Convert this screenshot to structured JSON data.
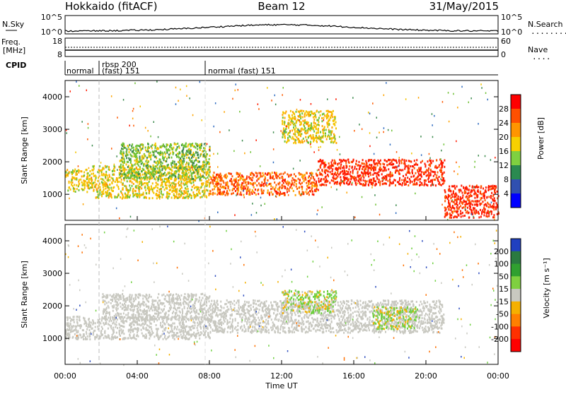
{
  "header": {
    "title": "Hokkaido (fitACF)",
    "beam": "Beam 12",
    "date": "31/May/2015"
  },
  "nsky_panel": {
    "left_label": "N.Sky",
    "left_ticks": [
      "10^5",
      "10^0"
    ],
    "right_label": "N.Search",
    "right_ticks": [
      "10^5",
      "10^0"
    ],
    "right_line_marker": "........"
  },
  "freq_panel": {
    "left_label_line1": "Freq.",
    "left_label_line2": "[MHz]",
    "left_ticks": [
      "18",
      "8"
    ],
    "right_label": "Nave",
    "right_ticks": [
      "60",
      "0"
    ],
    "right_line_marker": "...."
  },
  "cpid_panel": {
    "label": "CPID",
    "segments": [
      {
        "text_line1": "normal",
        "text_line2": ""
      },
      {
        "text_line1": "rbsp 200",
        "text_line2": "(fast) 151"
      },
      {
        "text_line1": "normal (fast)  151",
        "text_line2": ""
      }
    ]
  },
  "chart_data": [
    {
      "type": "heatmap",
      "name": "power",
      "ylabel": "Slant Range [km]",
      "y_ticks": [
        "1000",
        "2000",
        "3000",
        "4000"
      ],
      "ylim": [
        200,
        4500
      ],
      "colorbar_label": "Power [dB]",
      "colorbar_ticks": [
        "28",
        "24",
        "20",
        "16",
        "12",
        "8",
        "4"
      ],
      "colorbar_colors": [
        "#ff0000",
        "#ff5000",
        "#ff9500",
        "#f7d000",
        "#7fd040",
        "#2a8a50",
        "#3050b0",
        "#0000ff"
      ],
      "scatter_colors": [
        "#2f6cc0",
        "#3c8a4c",
        "#6fc236",
        "#f4c400",
        "#ffa400",
        "#ff5a00",
        "#ff1a00"
      ],
      "bands": [
        {
          "x": [
            0,
            1.5
          ],
          "y": [
            1100,
            1800
          ],
          "level": 3
        },
        {
          "x": [
            1.5,
            8
          ],
          "y": [
            900,
            1900
          ],
          "level": 3
        },
        {
          "x": [
            3,
            8
          ],
          "y": [
            1500,
            2600
          ],
          "level": 2
        },
        {
          "x": [
            8,
            14
          ],
          "y": [
            1000,
            1700
          ],
          "level": 5
        },
        {
          "x": [
            14,
            21
          ],
          "y": [
            1300,
            2100
          ],
          "level": 6
        },
        {
          "x": [
            21,
            24
          ],
          "y": [
            300,
            1300
          ],
          "level": 6
        },
        {
          "x": [
            12,
            15
          ],
          "y": [
            2600,
            3600
          ],
          "level": 3
        }
      ]
    },
    {
      "type": "heatmap",
      "name": "velocity",
      "ylabel": "Slant Range [km]",
      "y_ticks": [
        "1000",
        "2000",
        "3000",
        "4000"
      ],
      "ylim": [
        200,
        4500
      ],
      "xlabel": "Time UT",
      "x_ticks": [
        "00:00",
        "04:00",
        "08:00",
        "12:00",
        "16:00",
        "20:00",
        "00:00"
      ],
      "colorbar_label": "Velocity [m s⁻¹]",
      "colorbar_ticks": [
        "200",
        "100",
        "50",
        "15",
        "-15",
        "-50",
        "-100",
        "-200"
      ],
      "colorbar_colors": [
        "#2040c0",
        "#2a7a40",
        "#30a030",
        "#7fd040",
        "#c8c8c0",
        "#f5b000",
        "#ff8000",
        "#ff3000",
        "#ff0000"
      ],
      "scatter_colors": [
        "#c8c8c0",
        "#c8c8c0",
        "#c8c8c0",
        "#6fd040",
        "#f5b000",
        "#ff7000",
        "#3050c0"
      ],
      "bands": [
        {
          "x": [
            0,
            8
          ],
          "y": [
            1000,
            1700
          ],
          "level": 0
        },
        {
          "x": [
            2,
            8
          ],
          "y": [
            1600,
            2400
          ],
          "level": 0
        },
        {
          "x": [
            8,
            21
          ],
          "y": [
            1200,
            2200
          ],
          "level": 0
        },
        {
          "x": [
            17,
            19.5
          ],
          "y": [
            1300,
            2000
          ],
          "level": 3
        },
        {
          "x": [
            12,
            15
          ],
          "y": [
            1800,
            2500
          ],
          "level": 3
        }
      ]
    }
  ]
}
